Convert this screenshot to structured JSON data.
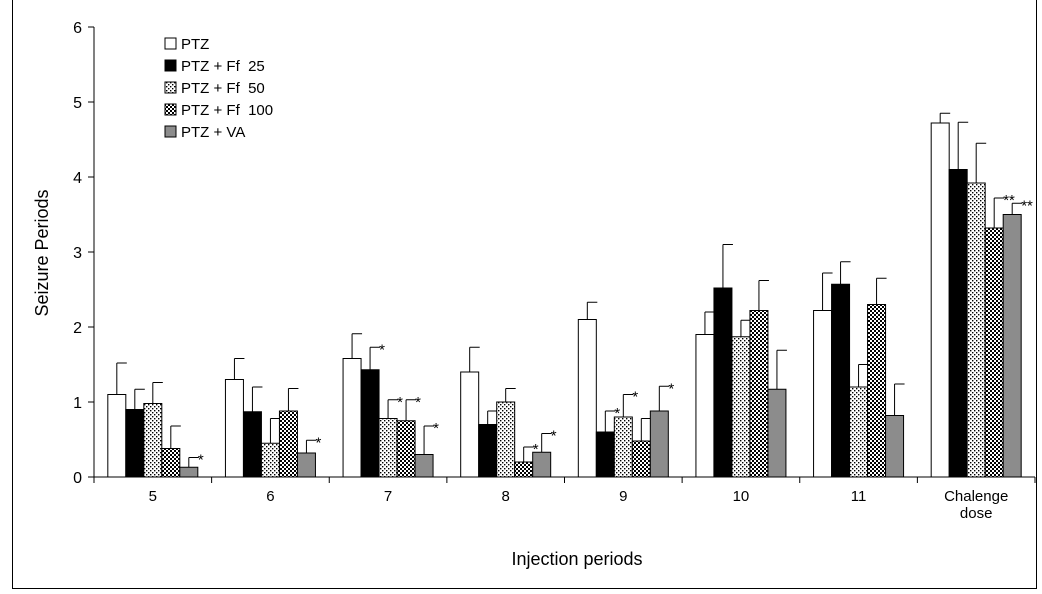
{
  "chart_data": {
    "type": "bar",
    "xlabel": "Injection periods",
    "ylabel": "Seizure Periods",
    "ylim": [
      0,
      6
    ],
    "yticks": [
      0,
      1,
      2,
      3,
      4,
      5,
      6
    ],
    "categories": [
      "5",
      "6",
      "7",
      "8",
      "9",
      "10",
      "11",
      "Chalenge dose"
    ],
    "legend_position": "top-left",
    "grid": false,
    "series": [
      {
        "name": "PTZ",
        "fill": "white",
        "values": [
          1.1,
          1.3,
          1.58,
          1.4,
          2.1,
          1.9,
          2.22,
          4.72
        ],
        "errors": [
          0.42,
          0.28,
          0.33,
          0.33,
          0.23,
          0.3,
          0.5,
          0.13
        ],
        "sig": [
          "",
          "",
          "",
          "",
          "",
          "",
          "",
          ""
        ]
      },
      {
        "name": "PTZ + Ff  25",
        "fill": "black",
        "values": [
          0.9,
          0.87,
          1.43,
          0.7,
          0.6,
          2.52,
          2.57,
          4.1
        ],
        "errors": [
          0.27,
          0.33,
          0.3,
          0.18,
          0.28,
          0.58,
          0.3,
          0.63
        ],
        "sig": [
          "",
          "",
          "*",
          "*",
          "*",
          "",
          "",
          ""
        ]
      },
      {
        "name": "PTZ + Ff  50",
        "fill": "dots",
        "values": [
          0.98,
          0.45,
          0.78,
          1.0,
          0.8,
          1.87,
          1.2,
          3.92
        ],
        "errors": [
          0.28,
          0.33,
          0.25,
          0.18,
          0.3,
          0.22,
          0.3,
          0.53
        ],
        "sig": [
          "",
          "*",
          "*",
          "",
          "*",
          "",
          "",
          ""
        ]
      },
      {
        "name": "PTZ + Ff  100",
        "fill": "checker",
        "values": [
          0.38,
          0.88,
          0.75,
          0.2,
          0.48,
          2.22,
          2.3,
          3.32
        ],
        "errors": [
          0.3,
          0.3,
          0.28,
          0.2,
          0.3,
          0.4,
          0.35,
          0.4
        ],
        "sig": [
          "",
          "",
          "*",
          "*",
          "*",
          "",
          "",
          "**"
        ]
      },
      {
        "name": "PTZ + VA",
        "fill": "gray",
        "values": [
          0.13,
          0.32,
          0.3,
          0.33,
          0.88,
          1.17,
          0.82,
          3.5
        ],
        "errors": [
          0.13,
          0.17,
          0.38,
          0.25,
          0.33,
          0.52,
          0.42,
          0.15
        ],
        "sig": [
          "*",
          "*",
          "*",
          "*",
          "*",
          "",
          "",
          "**"
        ]
      }
    ]
  }
}
